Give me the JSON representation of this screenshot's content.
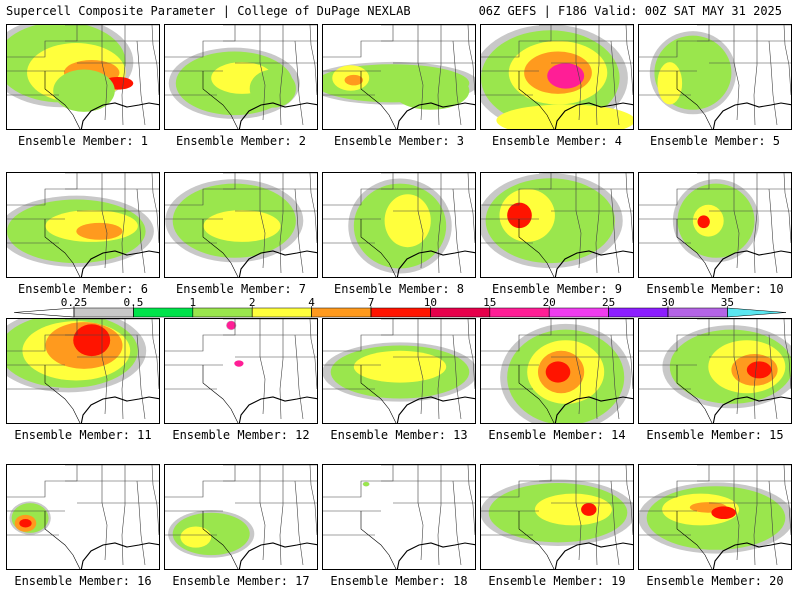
{
  "header": {
    "title": "Supercell Composite Parameter | College of DuPage NEXLAB",
    "run_info": "06Z GEFS | F186 Valid: 00Z SAT MAY 31 2025"
  },
  "caption_prefix": "Ensemble Member:",
  "members": [
    {
      "caption": "Ensemble Member: 1",
      "blobs": [
        [
          0.35,
          0.35,
          0.42,
          0.38,
          1
        ],
        [
          0.45,
          0.45,
          0.32,
          0.28,
          2
        ],
        [
          0.55,
          0.45,
          0.18,
          0.12,
          4
        ],
        [
          0.72,
          0.55,
          0.1,
          0.06,
          7
        ],
        [
          0.5,
          0.62,
          0.2,
          0.2,
          1
        ]
      ]
    },
    {
      "caption": "Ensemble Member: 2",
      "blobs": [
        [
          0.45,
          0.55,
          0.38,
          0.3,
          1
        ],
        [
          0.5,
          0.5,
          0.2,
          0.15,
          2
        ],
        [
          0.7,
          0.6,
          0.15,
          0.18,
          1
        ]
      ]
    },
    {
      "caption": "Ensemble Member: 3",
      "blobs": [
        [
          0.45,
          0.55,
          0.5,
          0.18,
          1
        ],
        [
          0.18,
          0.5,
          0.12,
          0.12,
          2
        ],
        [
          0.2,
          0.52,
          0.06,
          0.05,
          4
        ],
        [
          0.7,
          0.62,
          0.25,
          0.18,
          1
        ]
      ]
    },
    {
      "caption": "Ensemble Member: 4",
      "blobs": [
        [
          0.45,
          0.5,
          0.45,
          0.45,
          1
        ],
        [
          0.5,
          0.45,
          0.32,
          0.3,
          2
        ],
        [
          0.5,
          0.45,
          0.22,
          0.2,
          4
        ],
        [
          0.55,
          0.48,
          0.12,
          0.12,
          15
        ],
        [
          0.55,
          0.9,
          0.45,
          0.15,
          2
        ]
      ]
    },
    {
      "caption": "Ensemble Member: 5",
      "blobs": [
        [
          0.35,
          0.45,
          0.25,
          0.35,
          1
        ],
        [
          0.2,
          0.55,
          0.08,
          0.2,
          2
        ]
      ]
    },
    {
      "caption": "Ensemble Member: 6",
      "blobs": [
        [
          0.45,
          0.55,
          0.45,
          0.3,
          1
        ],
        [
          0.55,
          0.5,
          0.3,
          0.15,
          2
        ],
        [
          0.6,
          0.55,
          0.15,
          0.08,
          4
        ]
      ]
    },
    {
      "caption": "Ensemble Member: 7",
      "blobs": [
        [
          0.45,
          0.45,
          0.4,
          0.35,
          1
        ],
        [
          0.5,
          0.5,
          0.25,
          0.15,
          2
        ]
      ]
    },
    {
      "caption": "Ensemble Member: 8",
      "blobs": [
        [
          0.5,
          0.5,
          0.3,
          0.4,
          1
        ],
        [
          0.55,
          0.45,
          0.15,
          0.25,
          2
        ]
      ]
    },
    {
      "caption": "Ensemble Member: 9",
      "blobs": [
        [
          0.45,
          0.45,
          0.42,
          0.4,
          1
        ],
        [
          0.3,
          0.4,
          0.18,
          0.25,
          2
        ],
        [
          0.25,
          0.4,
          0.08,
          0.12,
          7
        ]
      ]
    },
    {
      "caption": "Ensemble Member: 10",
      "blobs": [
        [
          0.5,
          0.45,
          0.25,
          0.35,
          1
        ],
        [
          0.45,
          0.45,
          0.1,
          0.15,
          2
        ],
        [
          0.42,
          0.46,
          0.04,
          0.06,
          7
        ]
      ]
    },
    {
      "caption": "Ensemble Member: 11",
      "blobs": [
        [
          0.4,
          0.3,
          0.45,
          0.35,
          1
        ],
        [
          0.45,
          0.3,
          0.35,
          0.28,
          2
        ],
        [
          0.5,
          0.25,
          0.25,
          0.22,
          4
        ],
        [
          0.55,
          0.2,
          0.12,
          0.15,
          7
        ]
      ]
    },
    {
      "caption": "Ensemble Member: 12",
      "blobs": [
        [
          0.43,
          0.06,
          0.03,
          0.04,
          15
        ],
        [
          0.48,
          0.42,
          0.03,
          0.03,
          15
        ]
      ]
    },
    {
      "caption": "Ensemble Member: 13",
      "blobs": [
        [
          0.5,
          0.5,
          0.45,
          0.25,
          1
        ],
        [
          0.5,
          0.45,
          0.3,
          0.15,
          2
        ]
      ]
    },
    {
      "caption": "Ensemble Member: 14",
      "blobs": [
        [
          0.55,
          0.55,
          0.38,
          0.45,
          1
        ],
        [
          0.55,
          0.5,
          0.25,
          0.3,
          2
        ],
        [
          0.52,
          0.5,
          0.15,
          0.2,
          4
        ],
        [
          0.5,
          0.5,
          0.08,
          0.1,
          7
        ]
      ]
    },
    {
      "caption": "Ensemble Member: 15",
      "blobs": [
        [
          0.6,
          0.45,
          0.4,
          0.35,
          1
        ],
        [
          0.7,
          0.45,
          0.25,
          0.25,
          2
        ],
        [
          0.75,
          0.48,
          0.15,
          0.15,
          4
        ],
        [
          0.78,
          0.48,
          0.08,
          0.08,
          7
        ]
      ]
    },
    {
      "caption": "Ensemble Member: 16",
      "blobs": [
        [
          0.15,
          0.5,
          0.12,
          0.14,
          1
        ],
        [
          0.12,
          0.55,
          0.07,
          0.08,
          4
        ],
        [
          0.12,
          0.55,
          0.04,
          0.04,
          7
        ]
      ]
    },
    {
      "caption": "Ensemble Member: 17",
      "blobs": [
        [
          0.3,
          0.65,
          0.25,
          0.2,
          1
        ],
        [
          0.2,
          0.68,
          0.1,
          0.1,
          2
        ]
      ]
    },
    {
      "caption": "Ensemble Member: 18",
      "blobs": [
        [
          0.28,
          0.18,
          0.02,
          0.02,
          1
        ]
      ]
    },
    {
      "caption": "Ensemble Member: 19",
      "blobs": [
        [
          0.5,
          0.45,
          0.45,
          0.28,
          1
        ],
        [
          0.6,
          0.42,
          0.25,
          0.15,
          2
        ],
        [
          0.7,
          0.42,
          0.05,
          0.06,
          7
        ]
      ]
    },
    {
      "caption": "Ensemble Member: 20",
      "blobs": [
        [
          0.5,
          0.5,
          0.45,
          0.3,
          1
        ],
        [
          0.4,
          0.42,
          0.25,
          0.15,
          2
        ],
        [
          0.45,
          0.4,
          0.12,
          0.05,
          4
        ],
        [
          0.55,
          0.45,
          0.08,
          0.06,
          7
        ]
      ]
    }
  ],
  "colorbar": {
    "ticks": [
      "0.25",
      "0.5",
      "1",
      "2",
      "4",
      "7",
      "10",
      "15",
      "20",
      "25",
      "30",
      "35"
    ],
    "segments": [
      {
        "from": "0.25",
        "color": "#c8c8c8"
      },
      {
        "from": "0.5",
        "color": "#00e34a"
      },
      {
        "from": "1",
        "color": "#9ae64d"
      },
      {
        "from": "2",
        "color": "#ffff3c"
      },
      {
        "from": "4",
        "color": "#ff9a1e"
      },
      {
        "from": "7",
        "color": "#ff1400"
      },
      {
        "from": "10",
        "color": "#e6004b"
      },
      {
        "from": "15",
        "color": "#ff1e96"
      },
      {
        "from": "20",
        "color": "#f03cf0"
      },
      {
        "from": "25",
        "color": "#8c1eff"
      },
      {
        "from": "30",
        "color": "#b464e6"
      },
      {
        "from": "35",
        "color": "#5ae6f0"
      }
    ]
  },
  "colors": {
    "above_0.25": "#c8c8c8",
    "above_0.5": "#00e34a",
    "above_1": "#9ae64d",
    "above_2": "#ffff3c",
    "above_4": "#ff9a1e",
    "above_7": "#ff1400",
    "above_10": "#e6004b",
    "above_15": "#ff1e96"
  }
}
